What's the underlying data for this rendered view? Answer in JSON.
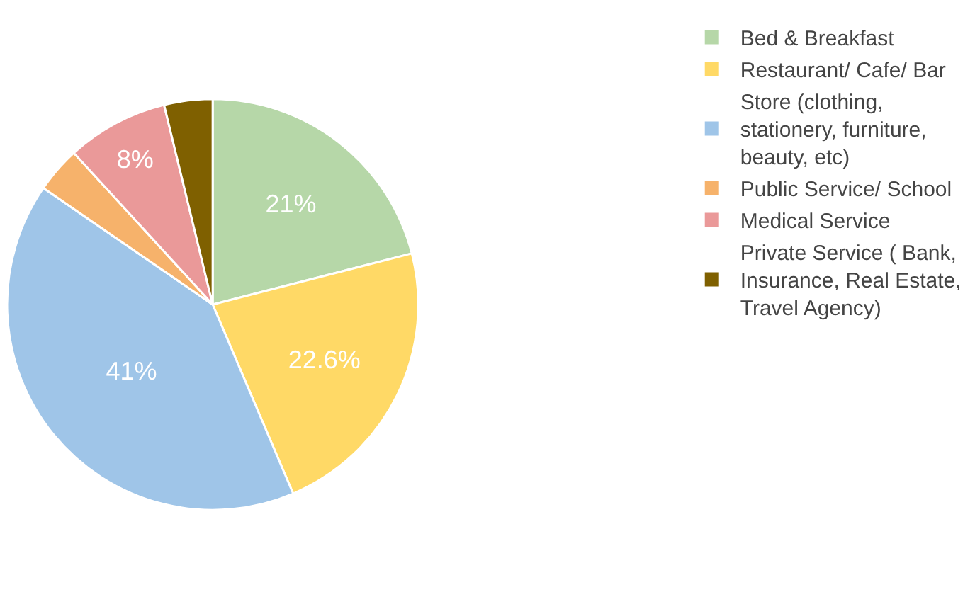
{
  "chart_data": {
    "type": "pie",
    "categories": [
      "Bed & Breakfast",
      "Restaurant/ Cafe/ Bar",
      "Store (clothing, stationery, furniture, beauty, etc)",
      "Public Service/ School",
      "Medical Service",
      "Private Service ( Bank, Insurance, Real Estate, Travel Agency)"
    ],
    "values": [
      21,
      22.6,
      41,
      3.6,
      8,
      3.8
    ],
    "value_labels": [
      "21%",
      "22.6%",
      "41%",
      null,
      "8%",
      null
    ],
    "colors": [
      "#b6d7a8",
      "#ffd966",
      "#9fc5e8",
      "#f6b26b",
      "#ea9999",
      "#7f6000"
    ],
    "legend": "right"
  }
}
